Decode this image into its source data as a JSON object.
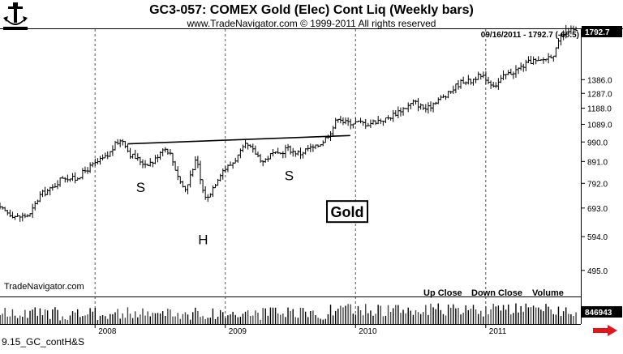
{
  "chart_data": {
    "type": "ohlc",
    "title": "GC3-057:  COMEX Gold (Elec) Cont Liq  (Weekly bars)",
    "subtitle": "www.TradeNavigator.com © 1999-2011 All rights reserved",
    "watermark": "TradeNavigator.com",
    "last_price_label": "09/16/2011 - 1792.7 (-68.5)",
    "last_price_box": "1792.7",
    "y_ticks": [
      "1386.0",
      "1287.0",
      "1188.0",
      "1089.0",
      "990.0",
      "891.0",
      "792.0",
      "693.0",
      "594.0",
      "495.0"
    ],
    "y_tick_values": [
      1386.0,
      1287.0,
      1188.0,
      1089.0,
      990.0,
      891.0,
      792.0,
      693.0,
      594.0,
      495.0
    ],
    "ylim": [
      430,
      1820
    ],
    "x_ticks": [
      "2008",
      "2009",
      "2010",
      "2011"
    ],
    "x_tick_years": [
      2008.0,
      2009.0,
      2010.0,
      2011.0
    ],
    "xlim": [
      2007.27,
      2011.73
    ],
    "pattern_labels": [
      {
        "text": "S",
        "year": 2008.35,
        "price": 756
      },
      {
        "text": "H",
        "year": 2008.83,
        "price": 570
      },
      {
        "text": "S",
        "year": 2009.49,
        "price": 805
      }
    ],
    "boxed_label": "Gold",
    "neckline": {
      "start": [
        2008.25,
        980
      ],
      "end": [
        2009.96,
        1025
      ]
    },
    "volume_legend": [
      "Up Close",
      "Down Close",
      "Volume"
    ],
    "volume_value": "846943",
    "volume_max": 60000,
    "series_anchors": [
      [
        2007.27,
        690
      ],
      [
        2007.4,
        660
      ],
      [
        2007.5,
        668
      ],
      [
        2007.58,
        745
      ],
      [
        2007.67,
        770
      ],
      [
        2007.75,
        820
      ],
      [
        2007.85,
        810
      ],
      [
        2007.95,
        860
      ],
      [
        2008.05,
        900
      ],
      [
        2008.1,
        920
      ],
      [
        2008.17,
        990
      ],
      [
        2008.22,
        1000
      ],
      [
        2008.26,
        930
      ],
      [
        2008.32,
        905
      ],
      [
        2008.38,
        880
      ],
      [
        2008.45,
        890
      ],
      [
        2008.52,
        960
      ],
      [
        2008.57,
        940
      ],
      [
        2008.62,
        850
      ],
      [
        2008.66,
        790
      ],
      [
        2008.7,
        760
      ],
      [
        2008.74,
        850
      ],
      [
        2008.78,
        900
      ],
      [
        2008.82,
        770
      ],
      [
        2008.86,
        725
      ],
      [
        2008.89,
        760
      ],
      [
        2008.93,
        800
      ],
      [
        2008.97,
        845
      ],
      [
        2009.05,
        880
      ],
      [
        2009.1,
        920
      ],
      [
        2009.16,
        975
      ],
      [
        2009.22,
        940
      ],
      [
        2009.29,
        890
      ],
      [
        2009.36,
        930
      ],
      [
        2009.41,
        920
      ],
      [
        2009.47,
        960
      ],
      [
        2009.52,
        940
      ],
      [
        2009.58,
        930
      ],
      [
        2009.63,
        955
      ],
      [
        2009.69,
        960
      ],
      [
        2009.76,
        1000
      ],
      [
        2009.82,
        1060
      ],
      [
        2009.87,
        1140
      ],
      [
        2009.91,
        1100
      ],
      [
        2009.96,
        1100
      ],
      [
        2010.03,
        1100
      ],
      [
        2010.09,
        1090
      ],
      [
        2010.16,
        1110
      ],
      [
        2010.24,
        1120
      ],
      [
        2010.33,
        1170
      ],
      [
        2010.4,
        1200
      ],
      [
        2010.45,
        1230
      ],
      [
        2010.5,
        1200
      ],
      [
        2010.55,
        1180
      ],
      [
        2010.62,
        1240
      ],
      [
        2010.7,
        1270
      ],
      [
        2010.77,
        1340
      ],
      [
        2010.83,
        1380
      ],
      [
        2010.88,
        1370
      ],
      [
        2010.93,
        1410
      ],
      [
        2011.0,
        1400
      ],
      [
        2011.03,
        1360
      ],
      [
        2011.08,
        1350
      ],
      [
        2011.15,
        1420
      ],
      [
        2011.22,
        1450
      ],
      [
        2011.3,
        1500
      ],
      [
        2011.36,
        1540
      ],
      [
        2011.4,
        1520
      ],
      [
        2011.47,
        1560
      ],
      [
        2011.53,
        1600
      ],
      [
        2011.58,
        1750
      ],
      [
        2011.63,
        1820
      ],
      [
        2011.68,
        1800
      ],
      [
        2011.71,
        1792.7
      ]
    ]
  },
  "footer": {
    "filename": "9.15_GC_contH&S"
  }
}
